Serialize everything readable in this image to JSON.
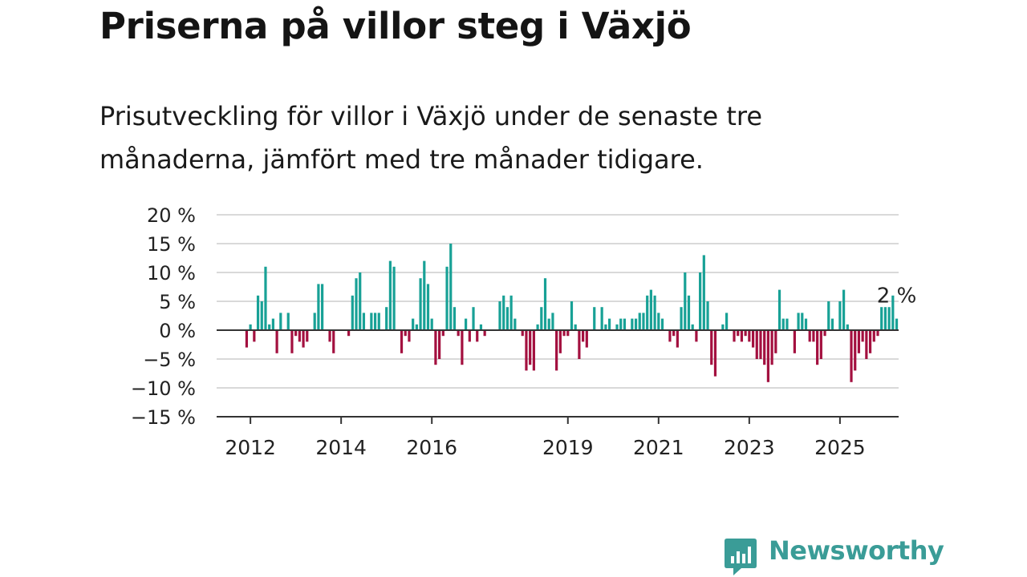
{
  "header": {
    "title": "Priserna på villor steg i Växjö",
    "subtitle": "Prisutveckling för villor i Växjö under de senaste tre månaderna, jämfört med tre månader tidigare."
  },
  "brand": {
    "name": "Newsworthy",
    "color": "#3a9c97"
  },
  "colors": {
    "positive": "#18a196",
    "negative": "#a3103f",
    "axis": "#333333",
    "grid": "#d9d9d9"
  },
  "chart_data": {
    "type": "bar",
    "x_unit": "month",
    "x_start": "2011-10",
    "ylim": [
      -15,
      20
    ],
    "yticks": [
      20,
      15,
      10,
      5,
      0,
      -5,
      -10,
      -15
    ],
    "ytick_labels": [
      "20 %",
      "15 %",
      "10 %",
      "5 %",
      "0 %",
      "−5 %",
      "−10 %",
      "−15 %"
    ],
    "xtick_labels": [
      "2012",
      "2014",
      "2016",
      "2019",
      "2021",
      "2023",
      "2025"
    ],
    "xtick_dates": [
      "2012-01",
      "2014-01",
      "2016-01",
      "2019-01",
      "2021-01",
      "2023-01",
      "2025-01"
    ],
    "grid": true,
    "last_value_label": "2 %",
    "values": [
      0,
      0,
      -3,
      1,
      -2,
      6,
      5,
      11,
      1,
      2,
      -4,
      3,
      0,
      3,
      -4,
      -1,
      -2,
      -3,
      -2,
      0,
      3,
      8,
      8,
      0,
      -2,
      -4,
      0,
      0,
      0,
      -1,
      6,
      9,
      10,
      3,
      0,
      3,
      3,
      3,
      0,
      4,
      12,
      11,
      0,
      -4,
      -1,
      -2,
      2,
      1,
      9,
      12,
      8,
      2,
      -6,
      -5,
      -1,
      11,
      15,
      4,
      -1,
      -6,
      2,
      -2,
      4,
      -2,
      1,
      -1,
      0,
      0,
      0,
      5,
      6,
      4,
      6,
      2,
      0,
      -1,
      -7,
      -6,
      -7,
      1,
      4,
      9,
      2,
      3,
      -7,
      -4,
      -1,
      -1,
      5,
      1,
      -5,
      -2,
      -3,
      0,
      4,
      0,
      4,
      1,
      2,
      0,
      1,
      2,
      2,
      0,
      2,
      2,
      3,
      3,
      6,
      7,
      6,
      3,
      2,
      0,
      -2,
      -1,
      -3,
      4,
      10,
      6,
      1,
      -2,
      10,
      13,
      5,
      -6,
      -8,
      0,
      1,
      3,
      0,
      -2,
      -1,
      -2,
      -1,
      -2,
      -3,
      -5,
      -5,
      -6,
      -9,
      -6,
      -4,
      7,
      2,
      2,
      0,
      -4,
      3,
      3,
      2,
      -2,
      -2,
      -6,
      -5,
      -1,
      5,
      2,
      0,
      5,
      7,
      1,
      -9,
      -7,
      -4,
      -2,
      -5,
      -4,
      -2,
      -1,
      4,
      4,
      4,
      6,
      2
    ]
  }
}
